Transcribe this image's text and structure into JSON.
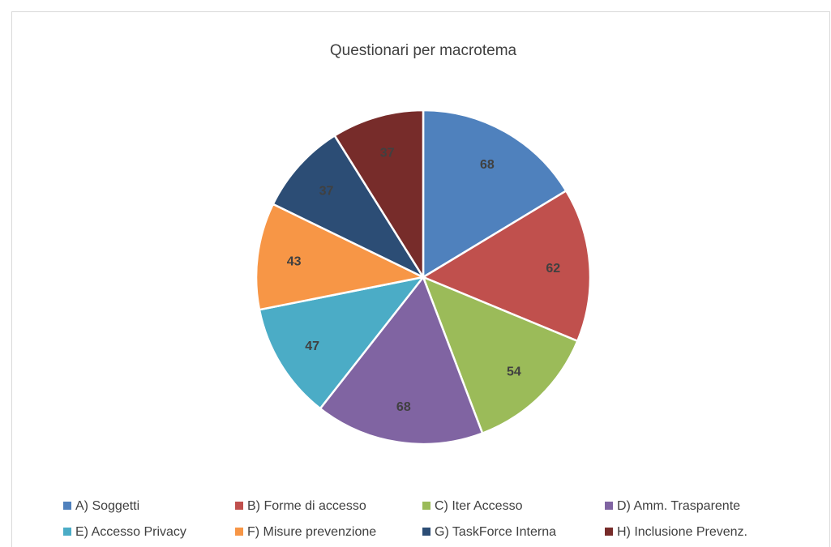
{
  "chart_data": {
    "type": "pie",
    "title": "Questionari per macrotema",
    "categories": [
      "A) Soggetti",
      "B) Forme di accesso",
      "C) Iter Accesso",
      "D) Amm. Trasparente",
      "E) Accesso Privacy",
      "F) Misure prevenzione",
      "G) TaskForce Interna",
      "H) Inclusione Prevenz."
    ],
    "values": [
      68,
      62,
      54,
      68,
      47,
      43,
      37,
      37
    ],
    "colors": [
      "#4f81bd",
      "#c0504d",
      "#9bbb59",
      "#8064a2",
      "#4bacc6",
      "#f79646",
      "#2c4d75",
      "#772c2a"
    ],
    "legend_position": "bottom",
    "data_labels": "inside"
  }
}
